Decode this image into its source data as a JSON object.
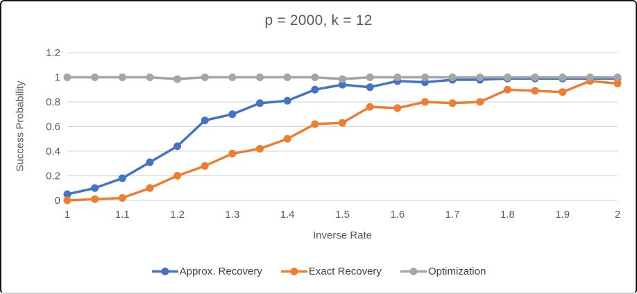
{
  "window": {
    "background": "#ffffff",
    "border_color": "#141414"
  },
  "chart_data": {
    "type": "line",
    "title": "p = 2000, k = 12",
    "xlabel": "Inverse Rate",
    "ylabel": "Success Probability",
    "xlim": [
      1,
      2
    ],
    "ylim": [
      0,
      1.2
    ],
    "grid": "horizontal",
    "legend_position": "bottom",
    "text_color": "#595959",
    "gridline_color": "#d9d9d9",
    "x_ticks": [
      1,
      1.1,
      1.2,
      1.3,
      1.4,
      1.5,
      1.6,
      1.7,
      1.8,
      1.9,
      2
    ],
    "y_ticks": [
      0,
      0.2,
      0.4,
      0.6,
      0.8,
      1,
      1.2
    ],
    "x": [
      1,
      1.05,
      1.1,
      1.15,
      1.2,
      1.25,
      1.3,
      1.35,
      1.4,
      1.45,
      1.5,
      1.55,
      1.6,
      1.65,
      1.7,
      1.75,
      1.8,
      1.85,
      1.9,
      1.95,
      2
    ],
    "series": [
      {
        "name": "Approx. Recovery",
        "color": "#4472c4",
        "values": [
          0.05,
          0.1,
          0.18,
          0.31,
          0.44,
          0.65,
          0.7,
          0.79,
          0.81,
          0.9,
          0.94,
          0.92,
          0.97,
          0.96,
          0.98,
          0.98,
          0.99,
          0.99,
          0.99,
          0.99,
          0.99
        ]
      },
      {
        "name": "Exact Recovery",
        "color": "#ed7d31",
        "values": [
          0.0,
          0.01,
          0.02,
          0.1,
          0.2,
          0.28,
          0.38,
          0.42,
          0.5,
          0.62,
          0.63,
          0.76,
          0.75,
          0.8,
          0.79,
          0.8,
          0.9,
          0.89,
          0.88,
          0.97,
          0.95
        ]
      },
      {
        "name": "Optimization",
        "color": "#a5a5a5",
        "values": [
          1,
          1,
          1,
          1,
          0.985,
          1,
          1,
          1,
          1,
          1,
          0.985,
          1,
          1,
          1,
          1,
          1,
          1,
          1,
          1,
          1,
          1
        ]
      }
    ]
  }
}
